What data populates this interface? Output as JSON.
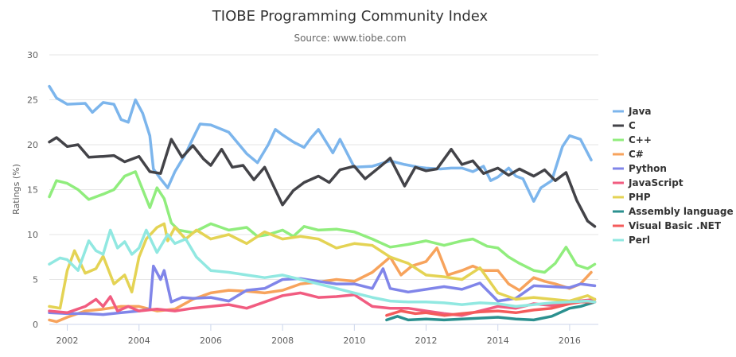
{
  "chart_data": {
    "type": "line",
    "title": "TIOBE Programming Community Index",
    "subtitle": "Source: www.tiobe.com",
    "ylabel": "Ratings (%)",
    "xlabel": "",
    "xlim": [
      2001.5,
      2016.8
    ],
    "ylim": [
      0,
      30
    ],
    "y_ticks": [
      0,
      5,
      10,
      15,
      20,
      25,
      30
    ],
    "x_ticks": [
      2002,
      2004,
      2006,
      2008,
      2010,
      2012,
      2014,
      2016
    ],
    "grid": "horizontal",
    "legend_position": "right",
    "series": [
      {
        "name": "Java",
        "color": "#7cb5ec",
        "x": [
          2001.5,
          2001.7,
          2002,
          2002.5,
          2002.7,
          2003,
          2003.3,
          2003.5,
          2003.7,
          2003.9,
          2004.1,
          2004.3,
          2004.4,
          2004.6,
          2004.8,
          2005,
          2005.3,
          2005.5,
          2005.7,
          2006,
          2006.5,
          2007,
          2007.3,
          2007.6,
          2007.8,
          2008,
          2008.3,
          2008.6,
          2008.8,
          2009,
          2009.4,
          2009.6,
          2010,
          2010.5,
          2011,
          2011.4,
          2011.8,
          2012,
          2012.4,
          2012.7,
          2013,
          2013.3,
          2013.6,
          2013.8,
          2014,
          2014.3,
          2014.5,
          2014.7,
          2015,
          2015.2,
          2015.5,
          2015.8,
          2016,
          2016.3,
          2016.6
        ],
        "values": [
          26.5,
          25.2,
          24.5,
          24.6,
          23.6,
          24.7,
          24.5,
          22.8,
          22.5,
          25.0,
          23.5,
          21.0,
          17.3,
          16.2,
          15.2,
          17.0,
          19.0,
          20.7,
          22.3,
          22.2,
          21.4,
          19.0,
          18.0,
          20.0,
          21.7,
          21.1,
          20.3,
          19.7,
          20.8,
          21.7,
          19.1,
          20.6,
          17.5,
          17.6,
          18.2,
          17.8,
          17.5,
          17.4,
          17.3,
          17.4,
          17.4,
          17.0,
          17.6,
          16.0,
          16.4,
          17.4,
          16.5,
          16.2,
          13.7,
          15.2,
          16.0,
          19.8,
          21.0,
          20.6,
          18.3
        ]
      },
      {
        "name": "C",
        "color": "#434348",
        "x": [
          2001.5,
          2001.7,
          2002,
          2002.3,
          2002.6,
          2003,
          2003.3,
          2003.6,
          2004,
          2004.3,
          2004.6,
          2004.9,
          2005.2,
          2005.5,
          2005.8,
          2006,
          2006.3,
          2006.6,
          2006.9,
          2007.2,
          2007.5,
          2008,
          2008.3,
          2008.6,
          2009,
          2009.3,
          2009.6,
          2010,
          2010.3,
          2010.7,
          2011,
          2011.4,
          2011.7,
          2012,
          2012.3,
          2012.7,
          2013,
          2013.3,
          2013.6,
          2014,
          2014.3,
          2014.6,
          2015,
          2015.3,
          2015.6,
          2015.9,
          2016.2,
          2016.5,
          2016.7
        ],
        "values": [
          20.3,
          20.8,
          19.8,
          20.0,
          18.6,
          18.7,
          18.8,
          18.1,
          18.7,
          17.0,
          16.8,
          20.6,
          18.6,
          19.9,
          18.4,
          17.7,
          19.5,
          17.5,
          17.7,
          16.1,
          17.5,
          13.3,
          14.9,
          15.8,
          16.5,
          15.8,
          17.2,
          17.6,
          16.2,
          17.5,
          18.5,
          15.4,
          17.5,
          17.1,
          17.3,
          19.5,
          17.8,
          18.2,
          16.8,
          17.4,
          16.6,
          17.3,
          16.5,
          17.2,
          16.0,
          16.9,
          13.8,
          11.5,
          10.9
        ]
      },
      {
        "name": "C++",
        "color": "#90ed7d",
        "x": [
          2001.5,
          2001.7,
          2002,
          2002.3,
          2002.6,
          2003,
          2003.3,
          2003.6,
          2003.9,
          2004.1,
          2004.3,
          2004.5,
          2004.7,
          2004.9,
          2005.1,
          2005.5,
          2006,
          2006.5,
          2007,
          2007.3,
          2007.6,
          2008,
          2008.3,
          2008.6,
          2009,
          2009.5,
          2010,
          2010.5,
          2011,
          2011.5,
          2012,
          2012.5,
          2013,
          2013.3,
          2013.7,
          2014,
          2014.3,
          2014.6,
          2015,
          2015.3,
          2015.6,
          2015.9,
          2016.2,
          2016.5,
          2016.7
        ],
        "values": [
          14.2,
          16.0,
          15.7,
          15.0,
          13.9,
          14.5,
          15.0,
          16.5,
          17.0,
          15.0,
          13.0,
          15.2,
          14.0,
          11.3,
          10.5,
          10.2,
          11.2,
          10.5,
          10.8,
          9.8,
          10.0,
          10.5,
          9.8,
          10.9,
          10.5,
          10.6,
          10.3,
          9.5,
          8.6,
          8.9,
          9.3,
          8.8,
          9.3,
          9.5,
          8.7,
          8.5,
          7.5,
          6.8,
          6.0,
          5.8,
          6.8,
          8.6,
          6.6,
          6.2,
          6.7
        ]
      },
      {
        "name": "C#",
        "color": "#f7a35c",
        "x": [
          2001.5,
          2001.7,
          2002,
          2002.5,
          2003,
          2003.5,
          2004,
          2004.5,
          2005,
          2005.5,
          2006,
          2006.5,
          2007,
          2007.5,
          2008,
          2008.5,
          2009,
          2009.5,
          2010,
          2010.5,
          2011,
          2011.3,
          2011.6,
          2012,
          2012.3,
          2012.6,
          2013,
          2013.3,
          2013.6,
          2014,
          2014.3,
          2014.6,
          2015,
          2015.3,
          2015.6,
          2016,
          2016.3,
          2016.6
        ],
        "values": [
          0.5,
          0.3,
          0.8,
          1.5,
          1.7,
          2.0,
          2.0,
          1.5,
          1.7,
          2.8,
          3.5,
          3.8,
          3.7,
          3.5,
          3.8,
          4.5,
          4.7,
          5.0,
          4.8,
          5.8,
          7.5,
          5.5,
          6.5,
          7.0,
          8.5,
          5.5,
          6.0,
          6.5,
          6.0,
          6.0,
          4.5,
          3.8,
          5.2,
          4.8,
          4.5,
          4.0,
          4.5,
          5.8
        ]
      },
      {
        "name": "Python",
        "color": "#8085e9",
        "x": [
          2001.5,
          2002,
          2002.5,
          2003,
          2003.5,
          2004,
          2004.3,
          2004.4,
          2004.6,
          2004.7,
          2004.9,
          2005.2,
          2005.5,
          2006,
          2006.5,
          2007,
          2007.5,
          2008,
          2008.5,
          2009,
          2009.5,
          2010,
          2010.5,
          2010.8,
          2011,
          2011.5,
          2012,
          2012.5,
          2013,
          2013.5,
          2014,
          2014.5,
          2015,
          2015.5,
          2016,
          2016.3,
          2016.7
        ],
        "values": [
          1.3,
          1.2,
          1.2,
          1.1,
          1.3,
          1.5,
          1.7,
          6.5,
          5.0,
          6.0,
          2.5,
          3.0,
          2.9,
          3.0,
          2.6,
          3.8,
          4.0,
          5.0,
          5.1,
          4.8,
          4.5,
          4.5,
          4.0,
          6.2,
          4.0,
          3.6,
          3.9,
          4.2,
          3.9,
          4.6,
          2.6,
          2.9,
          4.3,
          4.2,
          4.1,
          4.5,
          4.3
        ]
      },
      {
        "name": "JavaScript",
        "color": "#f15c80",
        "x": [
          2001.5,
          2002,
          2002.5,
          2002.8,
          2003,
          2003.2,
          2003.4,
          2003.7,
          2004,
          2004.5,
          2005,
          2005.5,
          2006,
          2006.5,
          2007,
          2007.5,
          2008,
          2008.5,
          2009,
          2009.5,
          2010,
          2010.5,
          2011,
          2011.5,
          2012,
          2012.5,
          2013,
          2013.5,
          2014,
          2014.5,
          2015,
          2015.5,
          2016,
          2016.5,
          2016.7
        ],
        "values": [
          1.5,
          1.3,
          2.0,
          2.8,
          2.0,
          3.1,
          1.5,
          2.0,
          1.5,
          1.7,
          1.5,
          1.8,
          2.0,
          2.2,
          1.8,
          2.5,
          3.2,
          3.5,
          3.0,
          3.1,
          3.3,
          2.0,
          1.8,
          1.8,
          1.5,
          1.2,
          1.0,
          1.5,
          2.0,
          1.8,
          2.3,
          2.1,
          2.5,
          2.7,
          2.8
        ]
      },
      {
        "name": "PHP",
        "color": "#e4d354",
        "x": [
          2001.5,
          2001.8,
          2002,
          2002.2,
          2002.5,
          2002.8,
          2003,
          2003.3,
          2003.6,
          2003.8,
          2004,
          2004.2,
          2004.5,
          2004.7,
          2004.8,
          2005,
          2005.3,
          2005.6,
          2006,
          2006.5,
          2007,
          2007.5,
          2008,
          2008.5,
          2009,
          2009.5,
          2010,
          2010.5,
          2011,
          2011.5,
          2012,
          2012.5,
          2013,
          2013.5,
          2014,
          2014.5,
          2015,
          2015.5,
          2016,
          2016.5,
          2016.7
        ],
        "values": [
          2.0,
          1.8,
          6.0,
          8.2,
          5.7,
          6.2,
          7.6,
          4.5,
          5.5,
          3.6,
          7.5,
          9.5,
          10.8,
          11.2,
          9.3,
          10.8,
          9.5,
          10.5,
          9.5,
          10.0,
          9.0,
          10.3,
          9.5,
          9.8,
          9.5,
          8.5,
          9.0,
          8.8,
          7.5,
          6.8,
          5.5,
          5.3,
          5.0,
          6.3,
          3.5,
          2.8,
          3.0,
          2.8,
          2.6,
          3.2,
          2.8
        ]
      },
      {
        "name": "Assembly language",
        "color": "#2b908f",
        "x": [
          2010.9,
          2011.2,
          2011.5,
          2012,
          2012.5,
          2013,
          2013.5,
          2014,
          2014.5,
          2015,
          2015.5,
          2016,
          2016.3,
          2016.7
        ],
        "values": [
          0.5,
          0.9,
          0.5,
          0.6,
          0.5,
          0.6,
          0.7,
          0.8,
          0.6,
          0.5,
          0.9,
          1.8,
          2.0,
          2.5
        ]
      },
      {
        "name": "Visual Basic .NET",
        "color": "#f45b5b",
        "x": [
          2010.9,
          2011.3,
          2011.7,
          2012,
          2012.5,
          2013,
          2013.5,
          2014,
          2014.5,
          2015,
          2015.5,
          2016,
          2016.3,
          2016.7
        ],
        "values": [
          1.0,
          1.5,
          1.2,
          1.3,
          1.0,
          1.2,
          1.4,
          1.5,
          1.3,
          1.6,
          1.8,
          2.3,
          2.5,
          2.5
        ]
      },
      {
        "name": "Perl",
        "color": "#91e8e1",
        "x": [
          2001.5,
          2001.8,
          2002,
          2002.3,
          2002.6,
          2002.8,
          2003,
          2003.2,
          2003.4,
          2003.6,
          2003.8,
          2004,
          2004.2,
          2004.5,
          2004.8,
          2005,
          2005.3,
          2005.6,
          2006,
          2006.5,
          2007,
          2007.5,
          2008,
          2008.5,
          2009,
          2009.5,
          2010,
          2010.5,
          2011,
          2011.5,
          2012,
          2012.5,
          2013,
          2013.5,
          2014,
          2014.5,
          2015,
          2015.5,
          2016,
          2016.5,
          2016.7
        ],
        "values": [
          6.7,
          7.4,
          7.2,
          6.0,
          9.3,
          8.2,
          7.8,
          10.5,
          8.5,
          9.2,
          7.8,
          8.5,
          10.5,
          8.0,
          10.0,
          9.0,
          9.5,
          7.5,
          6.0,
          5.8,
          5.5,
          5.2,
          5.5,
          5.0,
          4.5,
          4.0,
          3.5,
          3.0,
          2.6,
          2.5,
          2.5,
          2.4,
          2.2,
          2.4,
          2.3,
          2.0,
          2.2,
          2.4,
          2.5,
          2.6,
          2.5
        ]
      }
    ]
  }
}
